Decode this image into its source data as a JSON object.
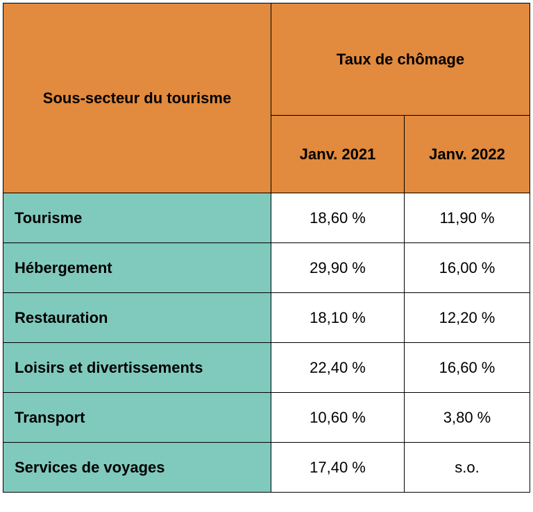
{
  "table": {
    "header": {
      "row_label_header": "Sous-secteur du tourisme",
      "group_header": "Taux de chômage",
      "columns": [
        "Janv. 2021",
        "Janv. 2022"
      ]
    },
    "rows": [
      {
        "label": "Tourisme",
        "values": [
          "18,60 %",
          "11,90 %"
        ]
      },
      {
        "label": "Hébergement",
        "values": [
          "29,90 %",
          "16,00 %"
        ]
      },
      {
        "label": "Restauration",
        "values": [
          "18,10 %",
          "12,20 %"
        ]
      },
      {
        "label": "Loisirs et divertissements",
        "values": [
          "22,40 %",
          "16,60 %"
        ]
      },
      {
        "label": "Transport",
        "values": [
          "10,60 %",
          "3,80 %"
        ]
      },
      {
        "label": "Services de voyages",
        "values": [
          "17,40 %",
          "s.o."
        ]
      }
    ]
  },
  "colors": {
    "header_fill": "#e28a3d",
    "label_fill": "#80c9bd",
    "border": "#000000"
  }
}
